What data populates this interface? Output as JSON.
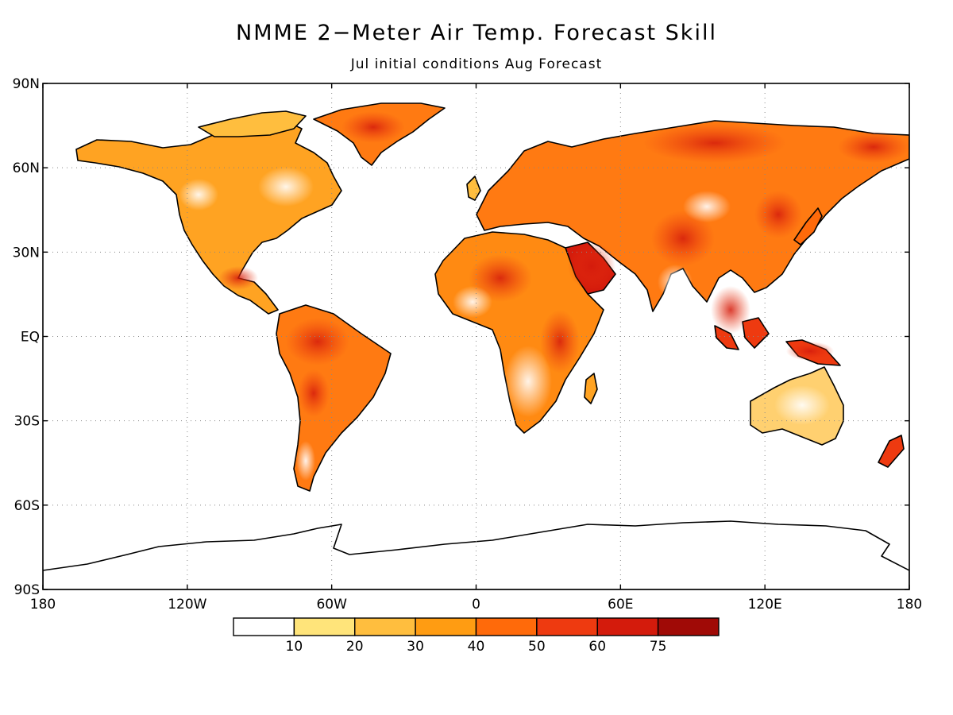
{
  "title": "NMME 2−Meter Air Temp. Forecast Skill",
  "subtitle": "Jul initial conditions  Aug Forecast",
  "map": {
    "projection": "latitude-longitude",
    "lon_range": [
      -180,
      180
    ],
    "lat_range": [
      -90,
      90
    ],
    "grid": "dotted",
    "lat_labels": [
      "90N",
      "60N",
      "30N",
      "EQ",
      "30S",
      "60S",
      "90S"
    ],
    "lon_labels": [
      "180",
      "120W",
      "60W",
      "0",
      "60E",
      "120E",
      "180"
    ],
    "ocean_color": "#ffffff",
    "coastline_color": "#000000"
  },
  "colorbar": {
    "tick_labels": [
      "10",
      "20",
      "30",
      "40",
      "50",
      "60",
      "75"
    ],
    "bins": [
      {
        "color": "#ffffff"
      },
      {
        "color": "#ffe47a"
      },
      {
        "color": "#ffbe3e"
      },
      {
        "color": "#ff9c12"
      },
      {
        "color": "#ff6a0a"
      },
      {
        "color": "#ee3a10"
      },
      {
        "color": "#d41b0c"
      },
      {
        "color": "#a00a06"
      }
    ]
  }
}
